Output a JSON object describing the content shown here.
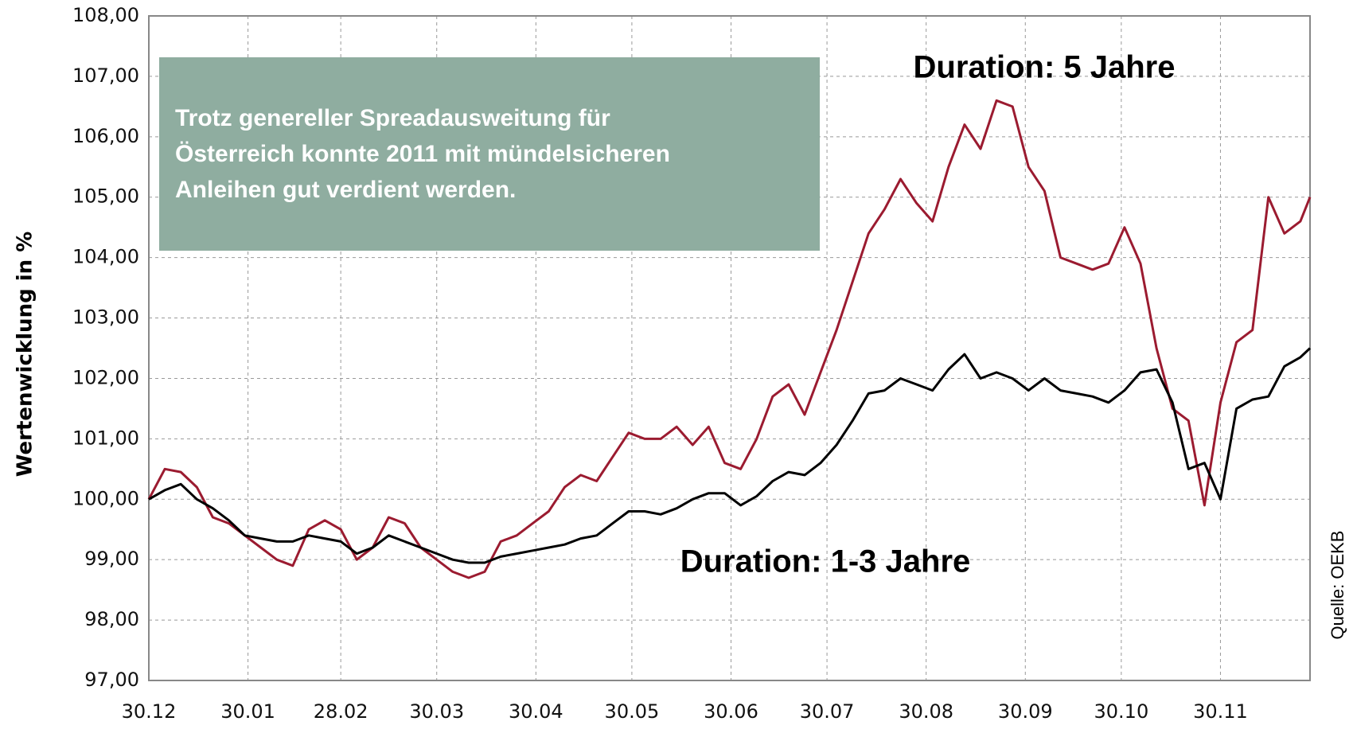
{
  "chart_data": {
    "type": "line",
    "annotation_box": {
      "lines": [
        "Trotz genereller Spreadausweitung für",
        "Österreich konnte 2011 mit mündelsicheren",
        "Anleihen gut verdient werden."
      ],
      "color": "#8fada0"
    },
    "y_label": "Wertenwicklung in %",
    "source": "Quelle: OEKB",
    "grid": true,
    "xlim": [
      0,
      363
    ],
    "xticks": [
      {
        "value": 0,
        "label": "30.12"
      },
      {
        "value": 31,
        "label": "30.01"
      },
      {
        "value": 60,
        "label": "28.02"
      },
      {
        "value": 90,
        "label": "30.03"
      },
      {
        "value": 121,
        "label": "30.04"
      },
      {
        "value": 151,
        "label": "30.05"
      },
      {
        "value": 182,
        "label": "30.06"
      },
      {
        "value": 212,
        "label": "30.07"
      },
      {
        "value": 243,
        "label": "30.08"
      },
      {
        "value": 274,
        "label": "30.09"
      },
      {
        "value": 304,
        "label": "30.10"
      },
      {
        "value": 335,
        "label": "30.11"
      }
    ],
    "ylim": [
      97,
      108
    ],
    "yticks": [
      {
        "value": 97,
        "label": "97,00"
      },
      {
        "value": 98,
        "label": "98,00"
      },
      {
        "value": 99,
        "label": "99,00"
      },
      {
        "value": 100,
        "label": "100,00"
      },
      {
        "value": 101,
        "label": "101,00"
      },
      {
        "value": 102,
        "label": "102,00"
      },
      {
        "value": 103,
        "label": "103,00"
      },
      {
        "value": 104,
        "label": "104,00"
      },
      {
        "value": 105,
        "label": "105,00"
      },
      {
        "value": 106,
        "label": "106,00"
      },
      {
        "value": 107,
        "label": "107,00"
      },
      {
        "value": 108,
        "label": "108,00"
      }
    ],
    "x": [
      0,
      5,
      10,
      15,
      20,
      25,
      30,
      35,
      40,
      45,
      50,
      55,
      60,
      65,
      70,
      75,
      80,
      85,
      90,
      95,
      100,
      105,
      110,
      115,
      120,
      125,
      130,
      135,
      140,
      145,
      150,
      155,
      160,
      165,
      170,
      175,
      180,
      185,
      190,
      195,
      200,
      205,
      210,
      215,
      220,
      225,
      230,
      235,
      240,
      245,
      250,
      255,
      260,
      265,
      270,
      275,
      280,
      285,
      290,
      295,
      300,
      305,
      310,
      315,
      320,
      325,
      330,
      335,
      340,
      345,
      350,
      355,
      360,
      363
    ],
    "series": [
      {
        "name": "Duration: 5 Jahre",
        "color": "#9b1b30",
        "values": [
          100.0,
          100.5,
          100.45,
          100.2,
          99.7,
          99.6,
          99.4,
          99.2,
          99.0,
          98.9,
          99.5,
          99.65,
          99.5,
          99.0,
          99.2,
          99.7,
          99.6,
          99.2,
          99.0,
          98.8,
          98.7,
          98.8,
          99.3,
          99.4,
          99.6,
          99.8,
          100.2,
          100.4,
          100.3,
          100.7,
          101.1,
          101.0,
          101.0,
          101.2,
          100.9,
          101.2,
          100.6,
          100.5,
          101.0,
          101.7,
          101.9,
          101.4,
          102.1,
          102.8,
          103.6,
          104.4,
          104.8,
          105.3,
          104.9,
          104.6,
          105.5,
          106.2,
          105.8,
          106.6,
          106.5,
          105.5,
          105.1,
          104.0,
          103.9,
          103.8,
          103.9,
          104.5,
          103.9,
          102.5,
          101.5,
          101.3,
          99.9,
          101.6,
          102.6,
          102.8,
          105.0,
          104.4,
          104.6,
          105.0
        ]
      },
      {
        "name": "Duration: 1-3 Jahre",
        "color": "#000000",
        "values": [
          100.0,
          100.15,
          100.25,
          100.0,
          99.85,
          99.65,
          99.4,
          99.35,
          99.3,
          99.3,
          99.4,
          99.35,
          99.3,
          99.1,
          99.2,
          99.4,
          99.3,
          99.2,
          99.1,
          99.0,
          98.95,
          98.95,
          99.05,
          99.1,
          99.15,
          99.2,
          99.25,
          99.35,
          99.4,
          99.6,
          99.8,
          99.8,
          99.75,
          99.85,
          100.0,
          100.1,
          100.1,
          99.9,
          100.05,
          100.3,
          100.45,
          100.4,
          100.6,
          100.9,
          101.3,
          101.75,
          101.8,
          102.0,
          101.9,
          101.8,
          102.15,
          102.4,
          102.0,
          102.1,
          102.0,
          101.8,
          102.0,
          101.8,
          101.75,
          101.7,
          101.6,
          101.8,
          102.1,
          102.15,
          101.6,
          100.5,
          100.6,
          100.0,
          101.5,
          101.65,
          101.7,
          102.2,
          102.35,
          102.5
        ]
      }
    ]
  }
}
